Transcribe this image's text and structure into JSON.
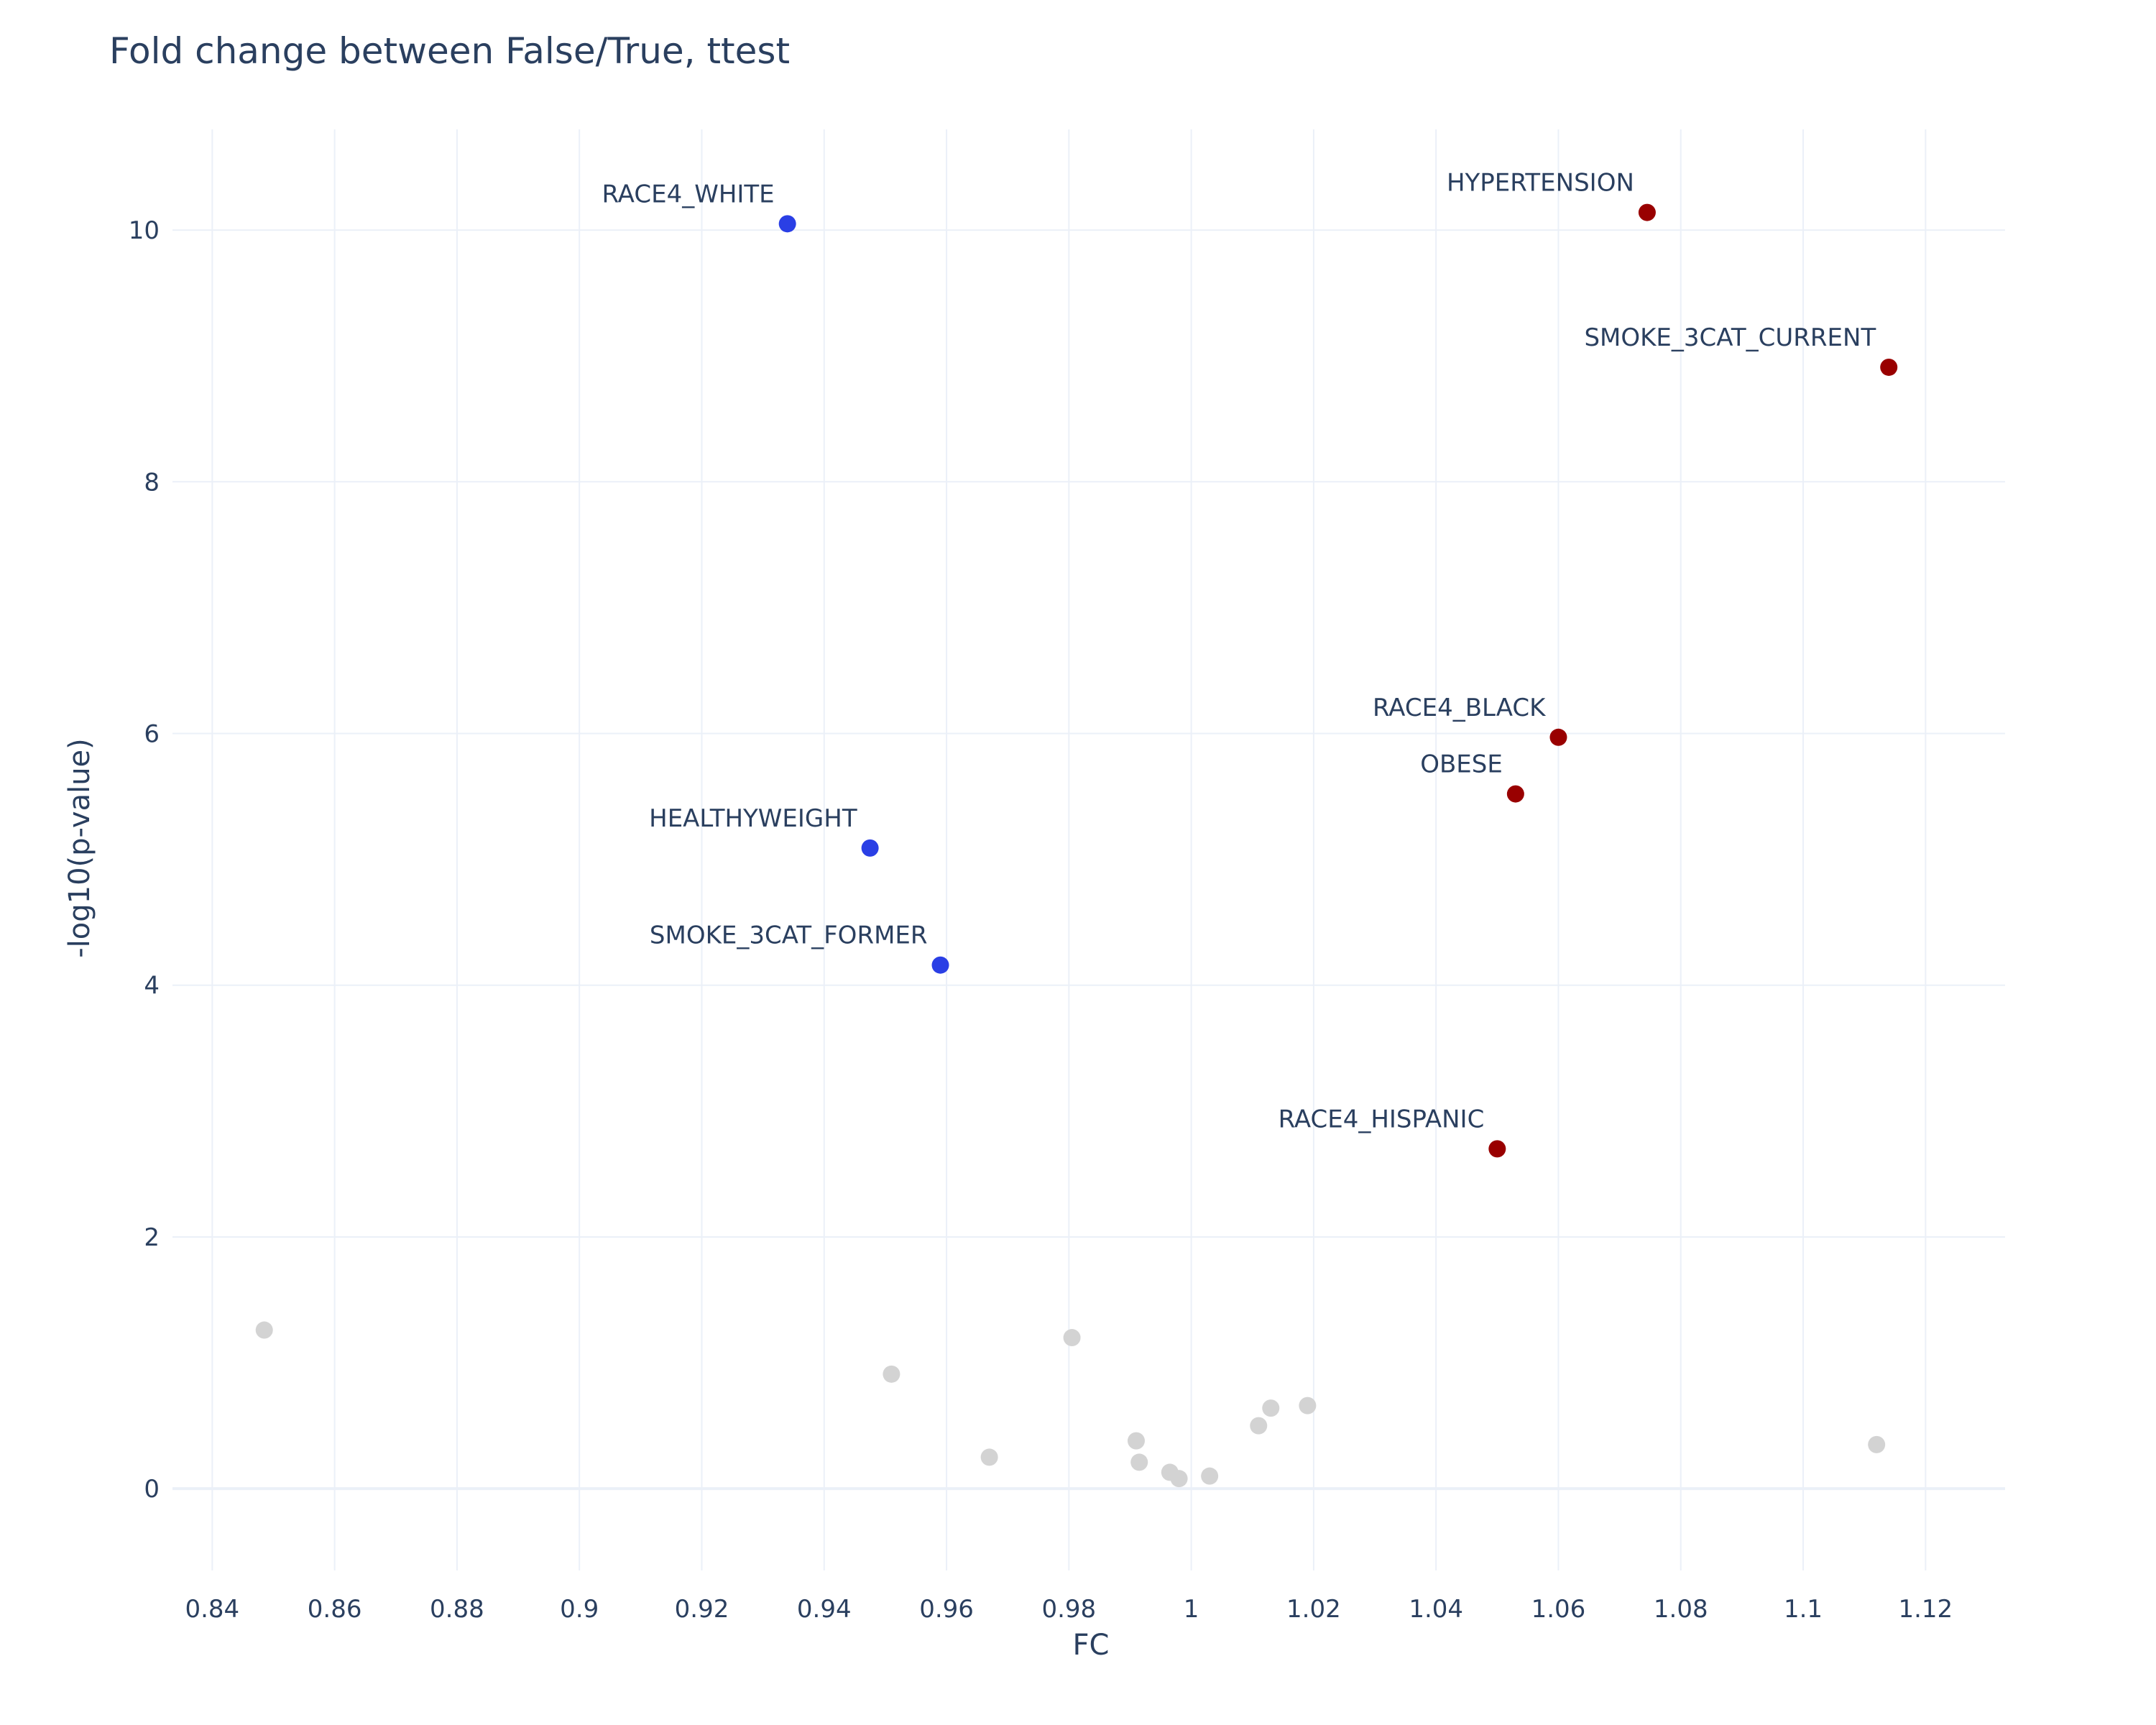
{
  "chart_data": {
    "type": "scatter",
    "title": "Fold change between False/True, ttest",
    "xlabel": "FC",
    "ylabel": "-log10(p-value)",
    "xlim": [
      0.8335,
      1.133
    ],
    "ylim": [
      -0.65,
      10.8
    ],
    "x_ticks": [
      0.84,
      0.86,
      0.88,
      0.9,
      0.92,
      0.94,
      0.96,
      0.98,
      1,
      1.02,
      1.04,
      1.06,
      1.08,
      1.1,
      1.12
    ],
    "x_tick_labels": [
      "0.84",
      "0.86",
      "0.88",
      "0.9",
      "0.92",
      "0.94",
      "0.96",
      "0.98",
      "1",
      "1.02",
      "1.04",
      "1.06",
      "1.08",
      "1.1",
      "1.12"
    ],
    "y_ticks": [
      0,
      2,
      4,
      6,
      8,
      10
    ],
    "y_tick_labels": [
      "0",
      "2",
      "4",
      "6",
      "8",
      "10"
    ],
    "grid": true,
    "colors": {
      "up": "#990000",
      "down": "#2a3fe5",
      "ns": "#d3d3d3"
    },
    "points": [
      {
        "x": 1.0745,
        "y": 10.14,
        "label": "HYPERTENSION",
        "group": "up"
      },
      {
        "x": 0.934,
        "y": 10.05,
        "label": "RACE4_WHITE",
        "group": "down"
      },
      {
        "x": 1.114,
        "y": 8.91,
        "label": "SMOKE_3CAT_CURRENT",
        "group": "up"
      },
      {
        "x": 1.06,
        "y": 5.97,
        "label": "RACE4_BLACK",
        "group": "up"
      },
      {
        "x": 1.053,
        "y": 5.52,
        "label": "OBESE",
        "group": "up"
      },
      {
        "x": 0.9475,
        "y": 5.09,
        "label": "HEALTHYWEIGHT",
        "group": "down"
      },
      {
        "x": 0.959,
        "y": 4.16,
        "label": "SMOKE_3CAT_FORMER",
        "group": "down"
      },
      {
        "x": 1.05,
        "y": 2.7,
        "label": "RACE4_HISPANIC",
        "group": "up"
      },
      {
        "x": 0.8485,
        "y": 1.26,
        "label": "",
        "group": "ns"
      },
      {
        "x": 0.9805,
        "y": 1.2,
        "label": "",
        "group": "ns"
      },
      {
        "x": 0.951,
        "y": 0.91,
        "label": "",
        "group": "ns"
      },
      {
        "x": 1.019,
        "y": 0.66,
        "label": "",
        "group": "ns"
      },
      {
        "x": 1.013,
        "y": 0.64,
        "label": "",
        "group": "ns"
      },
      {
        "x": 1.011,
        "y": 0.5,
        "label": "",
        "group": "ns"
      },
      {
        "x": 0.991,
        "y": 0.38,
        "label": "",
        "group": "ns"
      },
      {
        "x": 1.112,
        "y": 0.35,
        "label": "",
        "group": "ns"
      },
      {
        "x": 0.967,
        "y": 0.25,
        "label": "",
        "group": "ns"
      },
      {
        "x": 0.9915,
        "y": 0.21,
        "label": "",
        "group": "ns"
      },
      {
        "x": 0.9965,
        "y": 0.13,
        "label": "",
        "group": "ns"
      },
      {
        "x": 1.003,
        "y": 0.1,
        "label": "",
        "group": "ns"
      },
      {
        "x": 0.998,
        "y": 0.08,
        "label": "",
        "group": "ns"
      }
    ]
  }
}
